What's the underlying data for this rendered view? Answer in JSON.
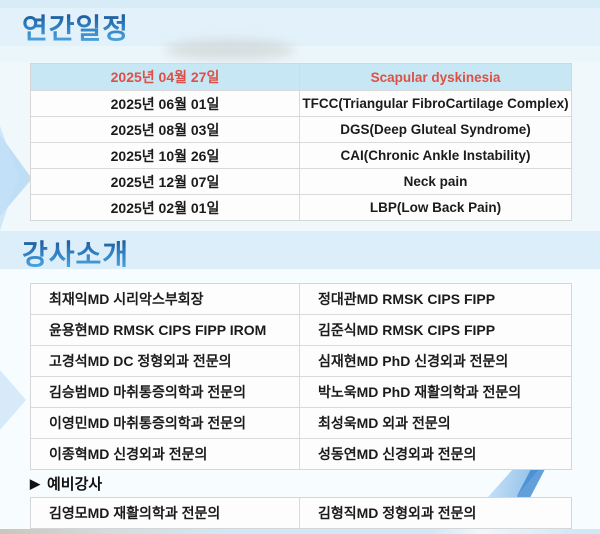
{
  "sections": {
    "schedule": {
      "title": "연간일정"
    },
    "instructors": {
      "title": "강사소개"
    },
    "reserve": {
      "marker": "▶",
      "title": "예비강사"
    }
  },
  "schedule_table": {
    "header": {
      "date": "2025년 04월 27일",
      "topic": "Scapular dyskinesia"
    },
    "rows": [
      {
        "date": "2025년 06월 01일",
        "topic": "TFCC(Triangular FibroCartilage Complex)"
      },
      {
        "date": "2025년 08월 03일",
        "topic": "DGS(Deep Gluteal Syndrome)"
      },
      {
        "date": "2025년 10월 26일",
        "topic": "CAI(Chronic Ankle Instability)"
      },
      {
        "date": "2025년 12월 07일",
        "topic": "Neck pain"
      },
      {
        "date": "2025년 02월 01일",
        "topic": "LBP(Low Back Pain)"
      }
    ]
  },
  "instructors_table": {
    "rows": [
      {
        "left": "최재익MD 시리악스부회장",
        "right": "정대관MD RMSK CIPS FIPP"
      },
      {
        "left": "윤용현MD RMSK CIPS FIPP IROM",
        "right": "김준식MD RMSK CIPS FIPP"
      },
      {
        "left": "고경석MD DC 정형외과 전문의",
        "right": "심재현MD PhD 신경외과 전문의"
      },
      {
        "left": "김승범MD 마취통증의학과 전문의",
        "right": "박노욱MD PhD 재활의학과 전문의"
      },
      {
        "left": "이영민MD 마취통증의학과 전문의",
        "right": "최성욱MD 외과 전문의"
      },
      {
        "left": "이종혁MD 신경외과 전문의",
        "right": "성동연MD 신경외과 전문의"
      }
    ]
  },
  "reserve_table": {
    "rows": [
      {
        "left": "김영모MD 재활의학과 전문의",
        "right": "김형직MD 정형외과 전문의"
      }
    ]
  },
  "colors": {
    "title_blue_dark": "#16457f",
    "title_blue_light": "#54b0e8",
    "header_row_bg": "#c8e7f5",
    "header_row_text": "#dc5045",
    "body_text": "#1b1b1b",
    "table_border": "#d6d6d6",
    "band_blue": "#dceefa",
    "page_bg": "#f0f8fc"
  }
}
